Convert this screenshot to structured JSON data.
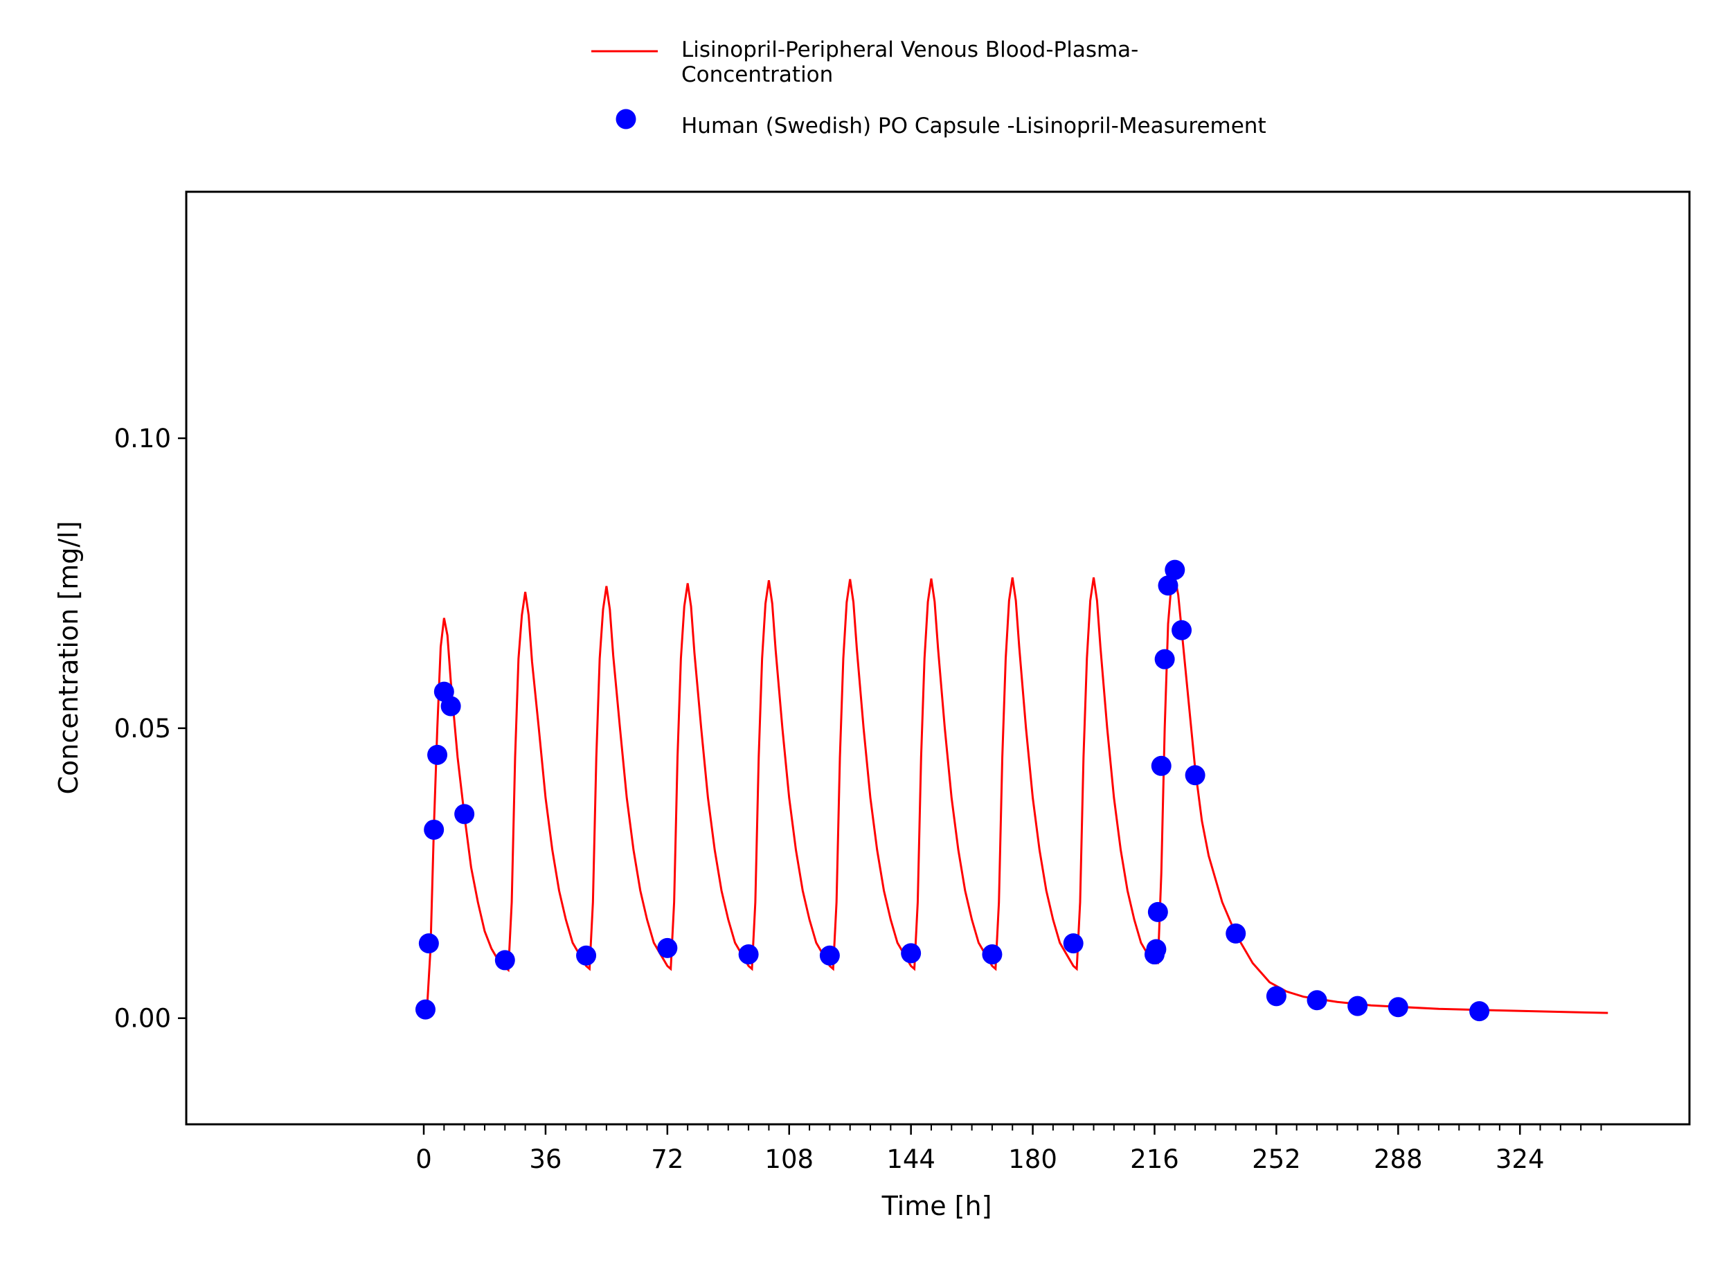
{
  "chart_data": {
    "type": "line",
    "xlabel": "Time [h]",
    "ylabel": "Concentration [mg/l]",
    "xlim": [
      -70.2,
      374.1
    ],
    "ylim": [
      -0.0183,
      0.1425
    ],
    "xticks": [
      0,
      36,
      72,
      108,
      144,
      180,
      216,
      252,
      288,
      324
    ],
    "xminorticks": [
      0,
      6,
      12,
      18,
      24,
      30,
      36,
      42,
      48,
      54,
      60,
      66,
      72,
      78,
      84,
      90,
      96,
      102,
      108,
      114,
      120,
      126,
      132,
      138,
      144,
      150,
      156,
      162,
      168,
      174,
      180,
      186,
      192,
      198,
      204,
      210,
      216,
      222,
      228,
      234,
      240,
      246,
      252,
      258,
      264,
      270,
      276,
      282,
      288,
      294,
      300,
      306,
      312,
      318,
      324,
      330,
      336,
      342,
      348
    ],
    "yticks": [
      {
        "value": 0,
        "label": "0.00"
      },
      0.05,
      {
        "value": 0.1,
        "label": "0.10"
      }
    ],
    "series": [
      {
        "name": "Lisinopril-Peripheral Venous Blood-Plasma-Concentration",
        "type": "line",
        "color": "#ff0000",
        "x": [
          0,
          1,
          2,
          3,
          4,
          5,
          6,
          7,
          8,
          10,
          12,
          14,
          16,
          18,
          20,
          22,
          24,
          25,
          26,
          27,
          28,
          29,
          30,
          31,
          32,
          34,
          36,
          38,
          40,
          42,
          44,
          46,
          48,
          49,
          50,
          51,
          52,
          53,
          54,
          55,
          56,
          58,
          60,
          62,
          64,
          66,
          68,
          70,
          72,
          73,
          74,
          75,
          76,
          77,
          78,
          79,
          80,
          82,
          84,
          86,
          88,
          90,
          92,
          94,
          96,
          97,
          98,
          99,
          100,
          101,
          102,
          103,
          104,
          106,
          108,
          110,
          112,
          114,
          116,
          118,
          120,
          121,
          122,
          123,
          124,
          125,
          126,
          127,
          128,
          130,
          132,
          134,
          136,
          138,
          140,
          142,
          144,
          145,
          146,
          147,
          148,
          149,
          150,
          151,
          152,
          154,
          156,
          158,
          160,
          162,
          164,
          166,
          168,
          169,
          170,
          171,
          172,
          173,
          174,
          175,
          176,
          178,
          180,
          182,
          184,
          186,
          188,
          190,
          192,
          193,
          194,
          195,
          196,
          197,
          198,
          199,
          200,
          202,
          204,
          206,
          208,
          210,
          212,
          214,
          216,
          217,
          218,
          219,
          220,
          221,
          222,
          223,
          224,
          226,
          228,
          230,
          232,
          236,
          240,
          245,
          250,
          255,
          260,
          270,
          280,
          300,
          320,
          350
        ],
        "values": [
          0,
          0.002,
          0.012,
          0.033,
          0.05,
          0.064,
          0.069,
          0.066,
          0.058,
          0.045,
          0.035,
          0.026,
          0.02,
          0.015,
          0.012,
          0.01,
          0.0088,
          0.0083,
          0.02,
          0.045,
          0.062,
          0.0695,
          0.0735,
          0.0695,
          0.0615,
          0.05,
          0.038,
          0.029,
          0.022,
          0.017,
          0.013,
          0.011,
          0.009,
          0.0085,
          0.02,
          0.045,
          0.062,
          0.0705,
          0.0745,
          0.0705,
          0.0625,
          0.05,
          0.038,
          0.029,
          0.022,
          0.017,
          0.013,
          0.011,
          0.009,
          0.0085,
          0.02,
          0.045,
          0.062,
          0.071,
          0.075,
          0.071,
          0.063,
          0.05,
          0.038,
          0.029,
          0.022,
          0.017,
          0.013,
          0.011,
          0.009,
          0.0085,
          0.02,
          0.045,
          0.062,
          0.0715,
          0.0755,
          0.0715,
          0.0635,
          0.05,
          0.038,
          0.029,
          0.022,
          0.017,
          0.013,
          0.011,
          0.009,
          0.0085,
          0.02,
          0.045,
          0.062,
          0.0717,
          0.0757,
          0.0717,
          0.0637,
          0.05,
          0.038,
          0.029,
          0.022,
          0.017,
          0.013,
          0.011,
          0.009,
          0.0085,
          0.02,
          0.045,
          0.062,
          0.0718,
          0.0758,
          0.0718,
          0.0638,
          0.05,
          0.038,
          0.029,
          0.022,
          0.017,
          0.013,
          0.011,
          0.009,
          0.0085,
          0.02,
          0.045,
          0.062,
          0.072,
          0.076,
          0.072,
          0.064,
          0.05,
          0.038,
          0.029,
          0.022,
          0.017,
          0.013,
          0.011,
          0.009,
          0.0085,
          0.02,
          0.045,
          0.062,
          0.072,
          0.076,
          0.072,
          0.064,
          0.05,
          0.038,
          0.029,
          0.022,
          0.017,
          0.013,
          0.011,
          0.0095,
          0.0095,
          0.025,
          0.05,
          0.068,
          0.075,
          0.076,
          0.073,
          0.067,
          0.055,
          0.043,
          0.034,
          0.028,
          0.02,
          0.0145,
          0.0095,
          0.0062,
          0.0046,
          0.0037,
          0.0028,
          0.0022,
          0.0016,
          0.0013,
          0.0009
        ]
      },
      {
        "name": "Human (Swedish) PO Capsule -Lisinopril-Measurement",
        "type": "scatter",
        "color": "#0000ff",
        "x": [
          0.5,
          1.5,
          3,
          4,
          6,
          8,
          12,
          24,
          48,
          72,
          96,
          120,
          144,
          168,
          192,
          216,
          216.5,
          217,
          218,
          219,
          220,
          222,
          224,
          228,
          240,
          252,
          264,
          276,
          288,
          312
        ],
        "values": [
          0.0015,
          0.0129,
          0.0325,
          0.0454,
          0.0563,
          0.0538,
          0.0352,
          0.01,
          0.0108,
          0.0121,
          0.011,
          0.0108,
          0.0112,
          0.011,
          0.0129,
          0.011,
          0.0119,
          0.0183,
          0.0435,
          0.0619,
          0.0746,
          0.0773,
          0.0669,
          0.0419,
          0.0146,
          0.0038,
          0.0031,
          0.0021,
          0.0019,
          0.0012
        ]
      }
    ]
  }
}
